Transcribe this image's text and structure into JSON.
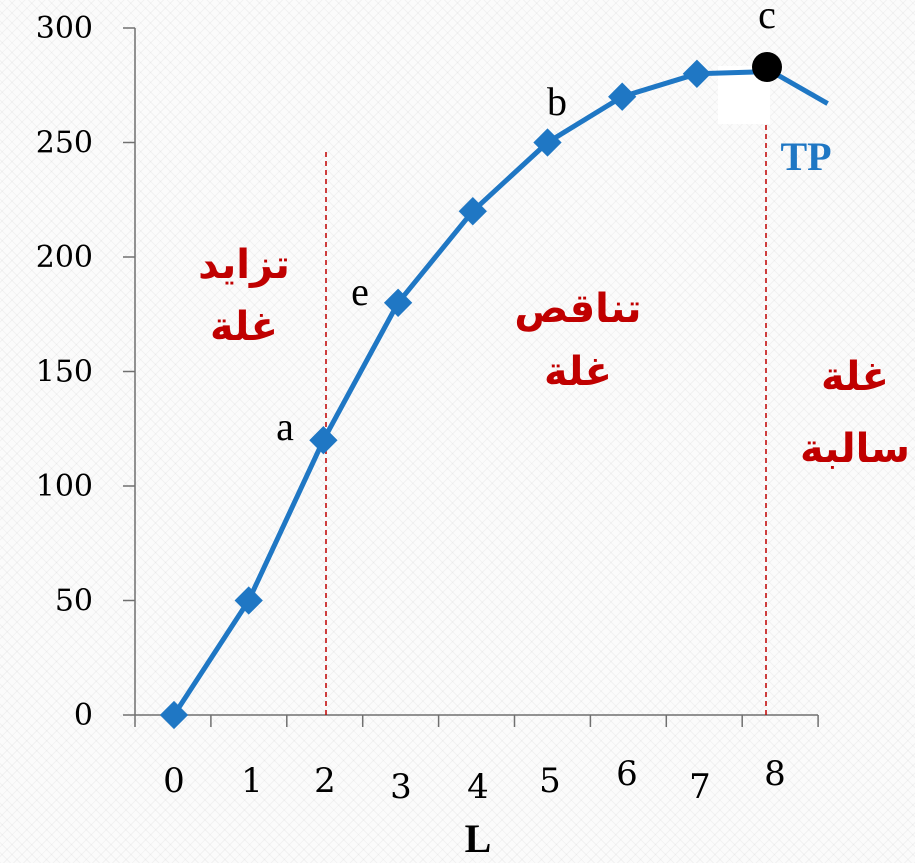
{
  "chart_data": {
    "type": "line",
    "xlabel": "L",
    "categories": [
      "0",
      "1",
      "2",
      "3",
      "4",
      "5",
      "6",
      "7",
      "8"
    ],
    "ylim": [
      0,
      300
    ],
    "yticks": [
      "0",
      "50",
      "100",
      "150",
      "200",
      "250",
      "300"
    ],
    "series": [
      {
        "name": "TP",
        "color": "#1f77c4",
        "x": [
          0,
          1,
          2,
          3,
          4,
          5,
          6,
          7,
          8,
          8.75
        ],
        "values": [
          0,
          50,
          120,
          180,
          220,
          250,
          270,
          280,
          281,
          267
        ],
        "marker_count": 8
      }
    ],
    "point_labels": [
      {
        "text": "a",
        "x": 2,
        "y": 120
      },
      {
        "text": "e",
        "x": 3,
        "y": 180
      },
      {
        "text": "b",
        "x": 5,
        "y": 250
      },
      {
        "text": "c",
        "x": 8,
        "y": 281
      }
    ],
    "highlight_point": {
      "x": 8,
      "y": 281,
      "color": "#000000"
    },
    "reference_lines": [
      {
        "x": 2,
        "color": "#c00000",
        "style": "dashed"
      },
      {
        "x": 8,
        "color": "#c00000",
        "style": "dashed"
      }
    ],
    "regions": [
      {
        "lines": [
          "تزايد",
          "غلة"
        ],
        "color": "#c00000"
      },
      {
        "lines": [
          "تناقص",
          "غلة"
        ],
        "color": "#c00000"
      },
      {
        "lines": [
          "غلة",
          "سالبة"
        ],
        "color": "#c00000"
      }
    ],
    "grid": false,
    "legend": "none"
  }
}
